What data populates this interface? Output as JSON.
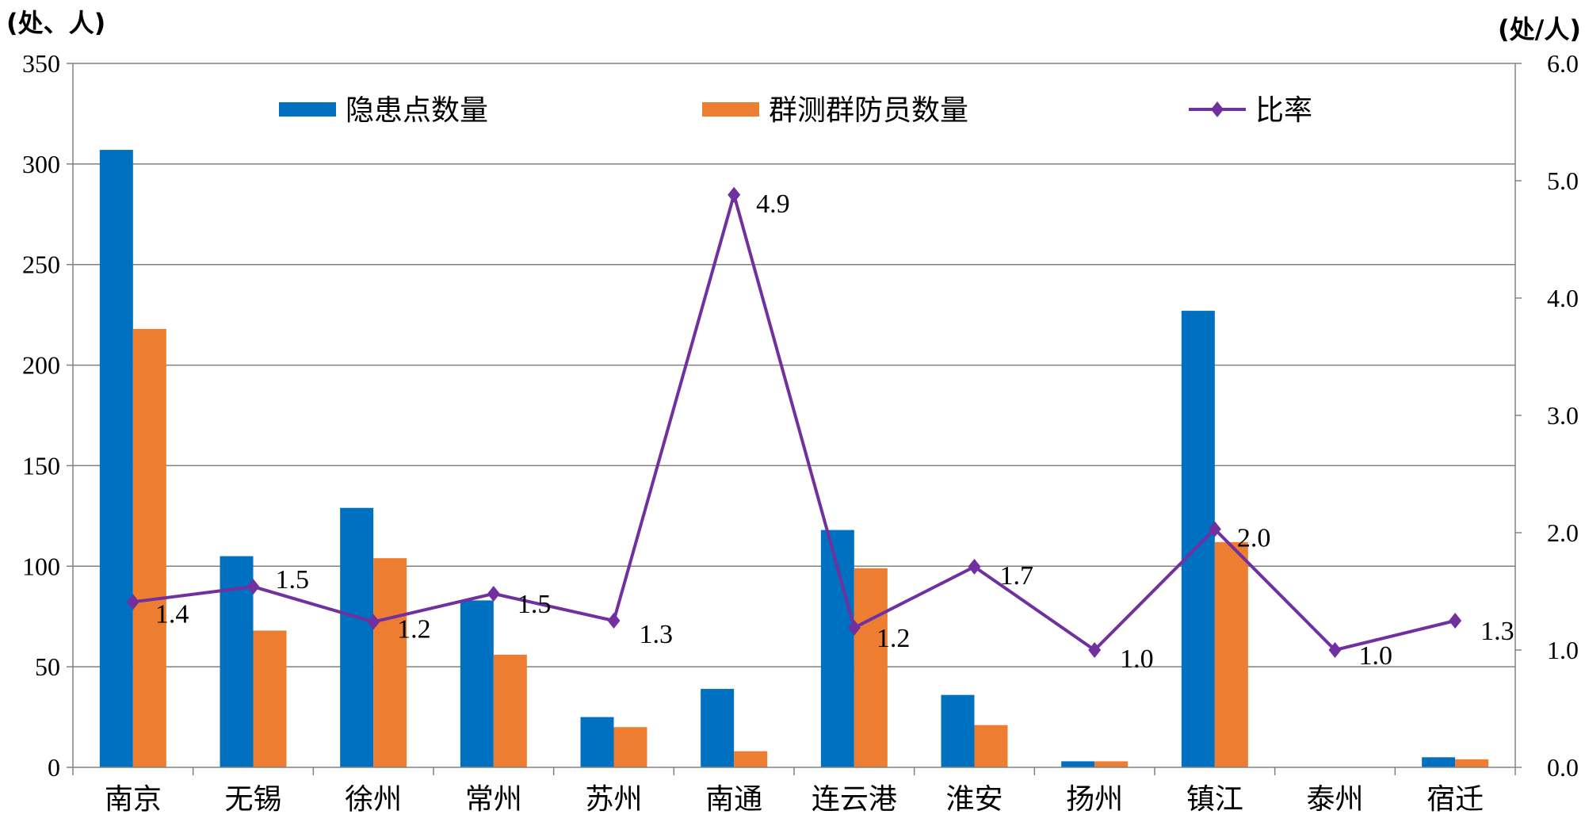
{
  "chart_data": {
    "type": "bar+line",
    "title": "",
    "categories": [
      "南京",
      "无锡",
      "徐州",
      "常州",
      "苏州",
      "南通",
      "连云港",
      "淮安",
      "扬州",
      "镇江",
      "泰州",
      "宿迁"
    ],
    "series": [
      {
        "name": "隐患点数量",
        "type": "bar",
        "axis": "left",
        "color": "#0070C0",
        "values": [
          307,
          105,
          129,
          83,
          25,
          39,
          118,
          36,
          3,
          227,
          0,
          5
        ]
      },
      {
        "name": "群测群防员数量",
        "type": "bar",
        "axis": "left",
        "color": "#ED7D31",
        "values": [
          218,
          68,
          104,
          56,
          20,
          8,
          99,
          21,
          3,
          112,
          0,
          4
        ]
      },
      {
        "name": "比率",
        "type": "line",
        "axis": "right",
        "color": "#7030A0",
        "values": [
          1.41,
          1.54,
          1.24,
          1.48,
          1.25,
          4.88,
          1.19,
          1.71,
          1.0,
          2.03,
          1.0,
          1.25
        ],
        "labels": [
          "1.4",
          "1.5",
          "1.2",
          "1.5",
          "1.3",
          "4.9",
          "1.2",
          "1.7",
          "1.0",
          "2.0",
          "1.0",
          "1.3"
        ]
      }
    ],
    "left_axis": {
      "label": "(处、人)",
      "ylim": [
        0,
        350
      ],
      "ticks": [
        "0",
        "50",
        "100",
        "150",
        "200",
        "250",
        "300",
        "350"
      ]
    },
    "right_axis": {
      "label": "(处/人)",
      "ylim": [
        0,
        6
      ],
      "ticks": [
        "0.0",
        "1.0",
        "2.0",
        "3.0",
        "4.0",
        "5.0",
        "6.0"
      ]
    },
    "grid": true,
    "legend_position": "top"
  }
}
